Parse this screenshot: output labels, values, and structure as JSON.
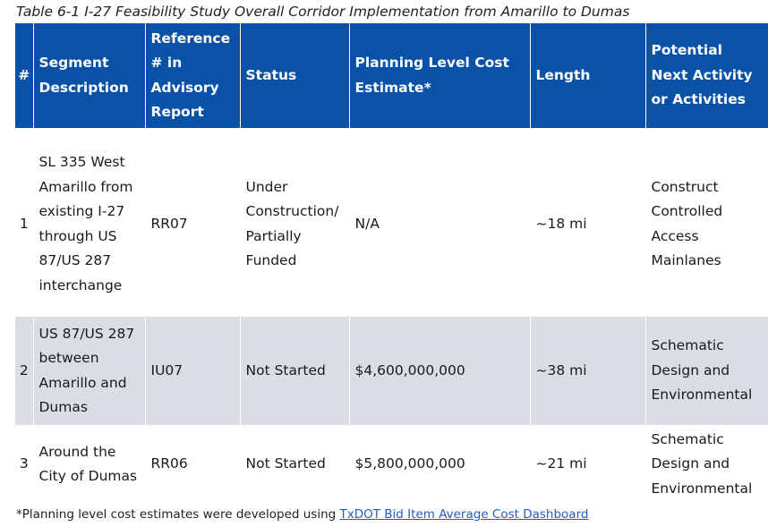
{
  "caption": "Table 6-1 I-27 Feasibility Study Overall Corridor Implementation from Amarillo to Dumas",
  "headers": {
    "num": "#",
    "segment": "Segment Description",
    "reference": "Reference # in Advisory Report",
    "status": "Status",
    "cost": "Planning Level Cost Estimate*",
    "length": "Length",
    "next": "Potential Next Activity or Activities"
  },
  "rows": [
    {
      "num": "1",
      "segment": "SL 335 West Amarillo from existing I-27 through US 87/US 287 interchange",
      "reference": "RR07",
      "status": "Under Construction/ Partially Funded",
      "cost": "N/A",
      "length": "~18 mi",
      "next": "Construct Controlled Access Mainlanes"
    },
    {
      "num": "2",
      "segment": "US 87/US 287 between Amarillo and Dumas",
      "reference": "IU07",
      "status": "Not Started",
      "cost": "$4,600,000,000",
      "length": "~38 mi",
      "next": "Schematic Design and Environmental"
    },
    {
      "num": "3",
      "segment": "Around the City of Dumas",
      "reference": "RR06",
      "status": "Not Started",
      "cost": "$5,800,000,000",
      "length": "~21 mi",
      "next": "Schematic Design and Environmental"
    }
  ],
  "footnote": {
    "text": "*Planning level cost estimates were developed using ",
    "link": "TxDOT Bid Item Average Cost Dashboard"
  }
}
